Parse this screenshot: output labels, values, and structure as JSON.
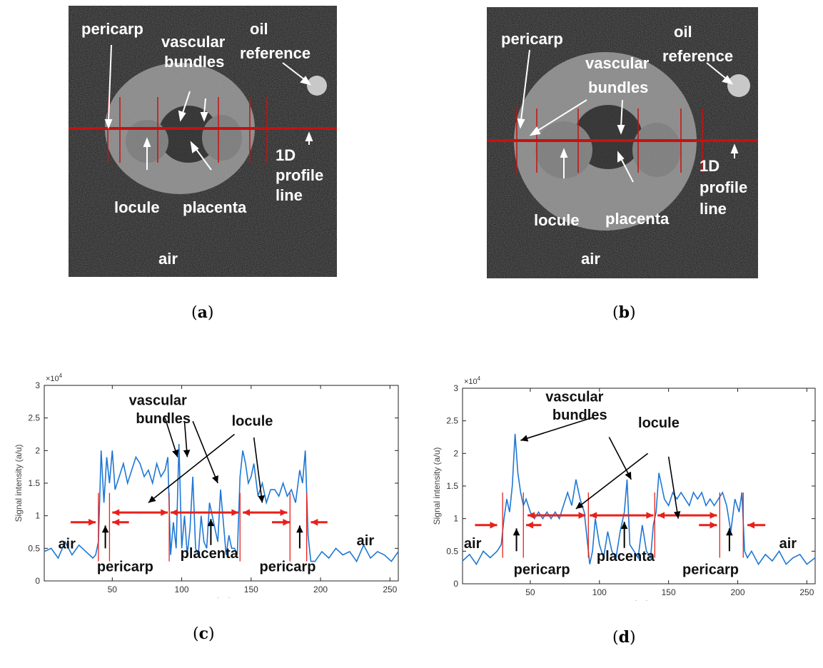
{
  "panels": {
    "a": {
      "caption_letter": "a",
      "labels": {
        "pericarp": "pericarp",
        "oil": "oil",
        "reference": "reference",
        "vascular": "vascular",
        "bundles": "bundles",
        "profile_1d": "1D",
        "profile": "profile",
        "line": "line",
        "locule": "locule",
        "placenta": "placenta",
        "air": "air"
      }
    },
    "b": {
      "caption_letter": "b",
      "labels": {
        "pericarp": "pericarp",
        "oil": "oil",
        "reference": "reference",
        "vascular": "vascular",
        "bundles": "bundles",
        "profile_1d": "1D",
        "profile": "profile",
        "line": "line",
        "locule": "locule",
        "placenta": "placenta",
        "air": "air"
      }
    },
    "c": {
      "caption_letter": "c"
    },
    "d": {
      "caption_letter": "d"
    }
  },
  "chart_data": [
    {
      "type": "line",
      "panel": "c",
      "xlabel": "pixel",
      "ylabel": "Signal intensity (a/u)",
      "exponent_label": "×10",
      "exponent_power": "4",
      "xlim": [
        1,
        256
      ],
      "ylim": [
        0,
        3
      ],
      "xticks": [
        "50",
        "100",
        "150",
        "200",
        "250"
      ],
      "yticks": [
        "0",
        "0.5",
        "1",
        "1.5",
        "2",
        "2.5",
        "3"
      ],
      "annotations": {
        "vascular": "vascular",
        "bundles": "bundles",
        "locule": "locule",
        "air_left": "air",
        "air_right": "air",
        "pericarp_left": "pericarp",
        "pericarp_right": "pericarp",
        "placenta": "placenta"
      },
      "series": [
        {
          "color": "#1f77d4",
          "x": [
            1,
            6,
            11,
            16,
            21,
            26,
            31,
            36,
            38,
            40,
            42,
            44,
            46,
            48,
            50,
            52,
            55,
            58,
            61,
            64,
            67,
            70,
            73,
            76,
            79,
            82,
            85,
            88,
            90,
            92,
            94,
            96,
            98,
            100,
            102,
            104,
            106,
            108,
            110,
            112,
            114,
            116,
            118,
            120,
            122,
            124,
            126,
            128,
            130,
            132,
            134,
            136,
            138,
            140,
            142,
            144,
            146,
            148,
            150,
            152,
            155,
            158,
            161,
            164,
            167,
            170,
            173,
            176,
            179,
            182,
            185,
            187,
            189,
            191,
            193,
            196,
            201,
            206,
            211,
            216,
            221,
            226,
            231,
            236,
            241,
            246,
            251,
            256
          ],
          "y": [
            0.45,
            0.5,
            0.35,
            0.6,
            0.4,
            0.55,
            0.45,
            0.35,
            0.4,
            0.6,
            2.0,
            1.2,
            1.9,
            1.5,
            2.0,
            1.4,
            1.6,
            1.8,
            1.5,
            1.7,
            1.9,
            1.8,
            1.6,
            1.7,
            1.5,
            1.8,
            1.6,
            1.7,
            1.9,
            0.4,
            0.9,
            0.5,
            2.1,
            0.5,
            1.0,
            0.4,
            0.8,
            1.6,
            0.5,
            0.4,
            1.0,
            0.6,
            0.5,
            1.2,
            1.0,
            0.8,
            0.6,
            1.4,
            0.9,
            0.4,
            0.7,
            0.5,
            0.5,
            0.4,
            1.6,
            2.0,
            1.8,
            1.5,
            1.6,
            1.8,
            1.3,
            1.5,
            1.2,
            1.4,
            1.4,
            1.3,
            1.5,
            1.3,
            1.4,
            1.2,
            1.7,
            1.5,
            2.0,
            0.7,
            0.3,
            0.3,
            0.45,
            0.35,
            0.5,
            0.4,
            0.45,
            0.3,
            0.55,
            0.35,
            0.45,
            0.4,
            0.3,
            0.45
          ]
        }
      ]
    },
    {
      "type": "line",
      "panel": "d",
      "xlabel": "pixel",
      "ylabel": "Signal intensity (a/u)",
      "exponent_label": "×10",
      "exponent_power": "4",
      "xlim": [
        1,
        256
      ],
      "ylim": [
        0,
        3
      ],
      "xticks": [
        "50",
        "100",
        "150",
        "200",
        "250"
      ],
      "yticks": [
        "0",
        "0.5",
        "1",
        "1.5",
        "2",
        "2.5",
        "3"
      ],
      "annotations": {
        "vascular": "vascular",
        "bundles": "bundles",
        "locule": "locule",
        "air_left": "air",
        "air_right": "air",
        "pericarp_left": "pericarp",
        "pericarp_right": "pericarp",
        "placenta": "placenta"
      },
      "series": [
        {
          "color": "#1f77d4",
          "x": [
            1,
            6,
            11,
            16,
            21,
            26,
            29,
            31,
            33,
            35,
            37,
            39,
            41,
            43,
            45,
            47,
            50,
            53,
            56,
            59,
            62,
            65,
            68,
            71,
            74,
            77,
            80,
            83,
            86,
            89,
            91,
            93,
            95,
            97,
            100,
            103,
            106,
            109,
            112,
            115,
            118,
            120,
            122,
            125,
            128,
            131,
            134,
            137,
            139,
            141,
            143,
            145,
            147,
            150,
            153,
            156,
            159,
            162,
            165,
            168,
            171,
            174,
            177,
            180,
            183,
            186,
            189,
            192,
            195,
            198,
            201,
            203,
            205,
            207,
            210,
            215,
            220,
            225,
            230,
            235,
            240,
            245,
            250,
            256
          ],
          "y": [
            0.35,
            0.45,
            0.3,
            0.5,
            0.4,
            0.5,
            0.6,
            1.0,
            1.3,
            1.1,
            1.5,
            2.3,
            1.7,
            1.4,
            1.2,
            1.3,
            1.1,
            1.0,
            1.1,
            1.0,
            1.1,
            1.0,
            1.1,
            1.0,
            1.2,
            1.4,
            1.2,
            1.6,
            1.3,
            1.1,
            0.7,
            0.3,
            0.5,
            1.0,
            0.6,
            0.4,
            0.8,
            0.5,
            0.4,
            0.8,
            1.1,
            1.6,
            0.6,
            0.5,
            0.4,
            0.9,
            0.5,
            0.4,
            0.9,
            1.1,
            1.7,
            1.5,
            1.3,
            1.2,
            1.4,
            1.3,
            1.4,
            1.3,
            1.2,
            1.4,
            1.3,
            1.4,
            1.2,
            1.3,
            1.2,
            1.3,
            1.4,
            1.2,
            0.8,
            1.3,
            1.1,
            1.4,
            0.5,
            0.4,
            0.5,
            0.3,
            0.45,
            0.35,
            0.5,
            0.3,
            0.4,
            0.45,
            0.3,
            0.4
          ]
        }
      ]
    }
  ]
}
